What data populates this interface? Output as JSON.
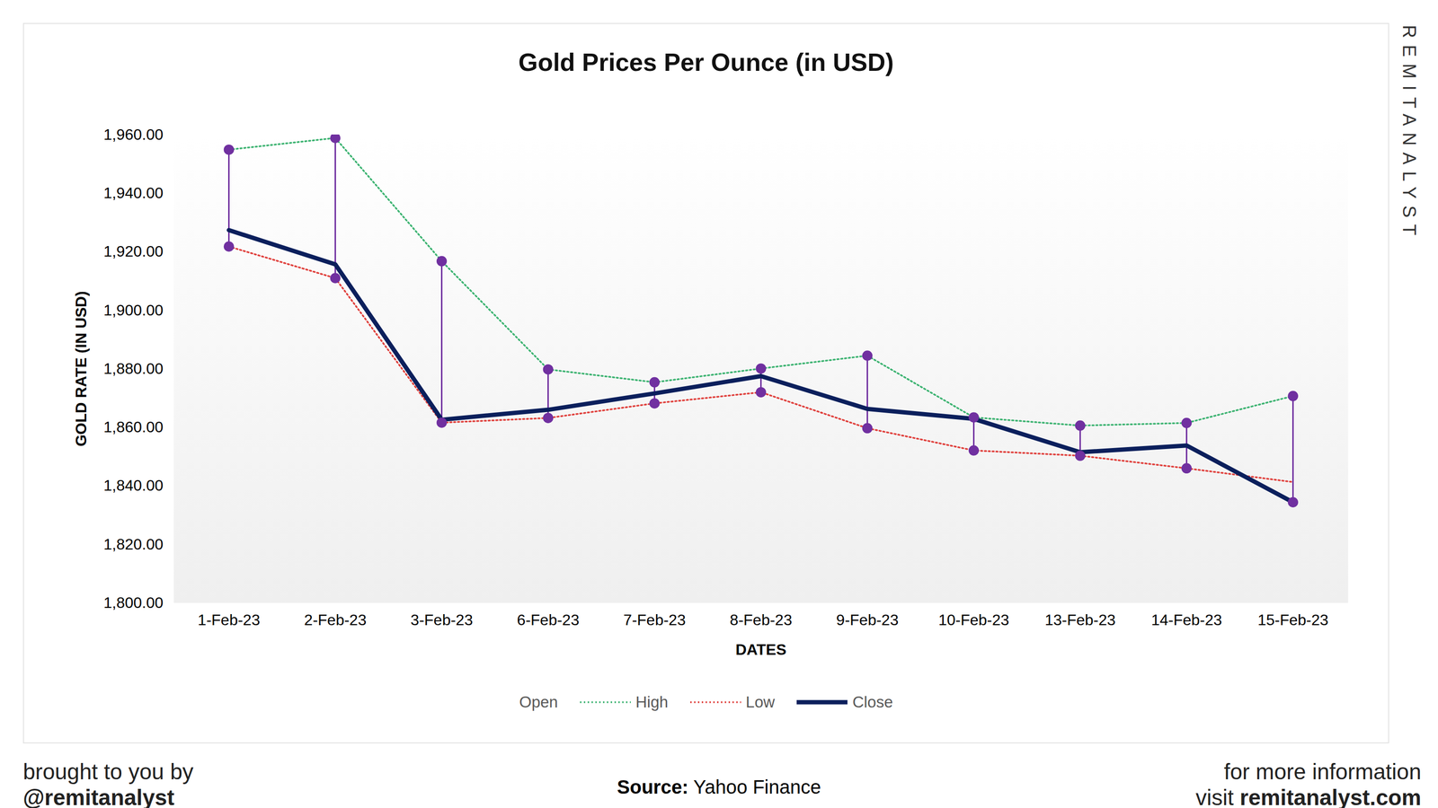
{
  "chart_data": {
    "type": "stock",
    "title": "Gold Prices Per Ounce (in USD)",
    "x_label": "DATES",
    "y_label": "GOLD RATE (IN USD)",
    "categories": [
      "1-Feb-23",
      "2-Feb-23",
      "3-Feb-23",
      "6-Feb-23",
      "7-Feb-23",
      "8-Feb-23",
      "9-Feb-23",
      "10-Feb-23",
      "13-Feb-23",
      "14-Feb-23",
      "15-Feb-23"
    ],
    "series": [
      {
        "name": "Open",
        "line_style": "none",
        "values": [
          null,
          null,
          null,
          null,
          null,
          null,
          null,
          null,
          null,
          null,
          null
        ]
      },
      {
        "name": "High",
        "color": "#3cb371",
        "line_style": "dotted",
        "values": [
          1954.9,
          1958.9,
          1916.8,
          1879.8,
          1875.4,
          1880.1,
          1884.5,
          1863.4,
          1860.6,
          1861.5,
          1870.7
        ]
      },
      {
        "name": "Low",
        "color": "#e0403c",
        "line_style": "dotted",
        "values": [
          1921.8,
          1911.0,
          1861.6,
          1863.2,
          1868.2,
          1872.0,
          1859.7,
          1852.1,
          1850.3,
          1846.0,
          1841.3
        ]
      },
      {
        "name": "Close",
        "color": "#0b1f5c",
        "line_style": "solid",
        "values": [
          1927.4,
          1915.7,
          1862.6,
          1866.0,
          1871.6,
          1877.5,
          1866.3,
          1862.9,
          1851.5,
          1853.8,
          1834.4
        ]
      }
    ],
    "color": "#7030a0",
    "marker": "circle",
    "ylim": [
      1800,
      1960
    ],
    "yticks": [
      {
        "value": 1800,
        "label": "1,800.00"
      },
      {
        "value": 1820,
        "label": "1,820.00"
      },
      {
        "value": 1840,
        "label": "1,840.00"
      },
      {
        "value": 1860,
        "label": "1,860.00"
      },
      {
        "value": 1880,
        "label": "1,880.00"
      },
      {
        "value": 1900,
        "label": "1,900.00"
      },
      {
        "value": 1920,
        "label": "1,920.00"
      },
      {
        "value": 1940,
        "label": "1,940.00"
      },
      {
        "value": 1960,
        "label": "1,960.00"
      }
    ],
    "grid": false,
    "legend": "bottom"
  },
  "page": {
    "watermark": "REMITANALYST",
    "credit_intro": "brought to you by",
    "credit": "@remitanalyst",
    "source_label": "Source:",
    "source": "Yahoo Finance",
    "info": "for more information",
    "visit": "visit",
    "site": "remitanalyst.com"
  }
}
